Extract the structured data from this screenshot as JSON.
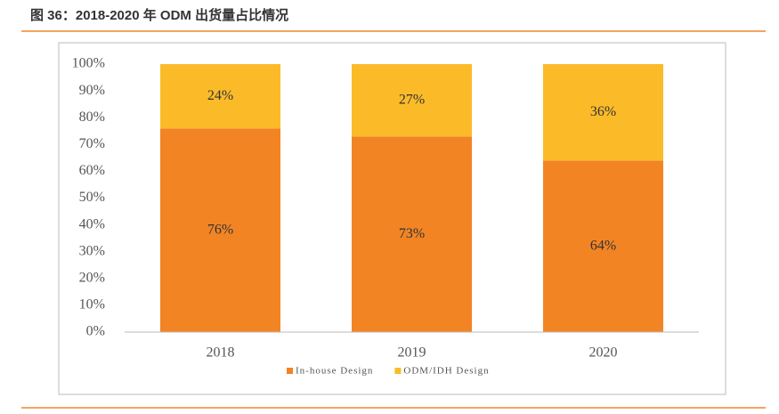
{
  "chart_data": {
    "type": "stacked-bar",
    "title": "图 36：2018-2020 年 ODM 出货量占比情况",
    "categories": [
      "2018",
      "2019",
      "2020"
    ],
    "series": [
      {
        "name": "In-house Design",
        "color": "#f28424",
        "values": [
          76,
          73,
          64
        ],
        "value_labels": [
          "76%",
          "73%",
          "64%"
        ]
      },
      {
        "name": "ODM/IDH Design",
        "color": "#fbbb29",
        "values": [
          24,
          27,
          36
        ],
        "value_labels": [
          "24%",
          "27%",
          "36%"
        ]
      }
    ],
    "ylim": [
      0,
      100
    ],
    "yticks": [
      {
        "value": 0,
        "label": "0%"
      },
      {
        "value": 10,
        "label": "10%"
      },
      {
        "value": 20,
        "label": "20%"
      },
      {
        "value": 30,
        "label": "30%"
      },
      {
        "value": 40,
        "label": "40%"
      },
      {
        "value": 50,
        "label": "50%"
      },
      {
        "value": 60,
        "label": "60%"
      },
      {
        "value": 70,
        "label": "70%"
      },
      {
        "value": 80,
        "label": "80%"
      },
      {
        "value": 90,
        "label": "90%"
      },
      {
        "value": 100,
        "label": "100%"
      }
    ],
    "legend": "bottom"
  }
}
